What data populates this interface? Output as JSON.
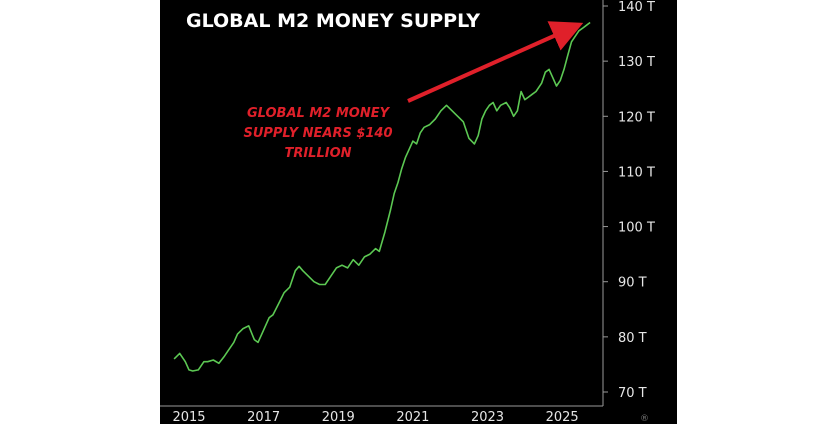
{
  "chart_data": {
    "type": "line",
    "title": "GLOBAL M2 MONEY SUPPLY",
    "annotation": [
      "GLOBAL M2 MONEY",
      "SUPPLY NEARS $140",
      "TRILLION"
    ],
    "yticks": [
      "140 T",
      "130 T",
      "120 T",
      "110 T",
      "100 T",
      "90 T",
      "80 T",
      "70 T"
    ],
    "xticks": [
      "2015",
      "2017",
      "2019",
      "2021",
      "2023",
      "2025"
    ],
    "ylim": [
      70,
      140
    ],
    "xlim": [
      2014.6,
      2026.0
    ],
    "grid": false,
    "watermark": "®",
    "colors": {
      "line": "#5cc853",
      "annotation": "#e0202a",
      "background": "#000000",
      "text": "#ffffff"
    },
    "series": [
      {
        "x": [
          2014.6,
          2014.75,
          2014.9,
          2015.0,
          2015.1,
          2015.25,
          2015.4,
          2015.5,
          2015.65,
          2015.8,
          2015.95,
          2016.05,
          2016.2,
          2016.3,
          2016.45,
          2016.6,
          2016.75,
          2016.85,
          2016.95,
          2017.05,
          2017.15,
          2017.25,
          2017.4,
          2017.55,
          2017.7,
          2017.85,
          2017.95,
          2018.05,
          2018.2,
          2018.35,
          2018.5,
          2018.65,
          2018.8,
          2018.95,
          2019.1,
          2019.25,
          2019.4,
          2019.55,
          2019.7,
          2019.85,
          2020.0,
          2020.1,
          2020.25,
          2020.4,
          2020.5,
          2020.6,
          2020.7,
          2020.8,
          2020.9,
          2021.0,
          2021.1,
          2021.2,
          2021.3,
          2021.45,
          2021.6,
          2021.75,
          2021.9,
          2022.05,
          2022.2,
          2022.35,
          2022.5,
          2022.65,
          2022.75,
          2022.85,
          2022.95,
          2023.05,
          2023.15,
          2023.25,
          2023.35,
          2023.5,
          2023.6,
          2023.7,
          2023.8,
          2023.9,
          2024.0,
          2024.1,
          2024.2,
          2024.3,
          2024.45,
          2024.55,
          2024.65,
          2024.75,
          2024.85,
          2024.95,
          2025.05,
          2025.15,
          2025.25,
          2025.35,
          2025.45,
          2025.55,
          2025.65,
          2025.75
        ],
        "y": [
          76.0,
          77.0,
          75.5,
          74.0,
          73.8,
          74.0,
          75.5,
          75.5,
          75.8,
          75.2,
          76.5,
          77.5,
          79.0,
          80.5,
          81.5,
          82.0,
          79.5,
          79.0,
          80.5,
          82.0,
          83.5,
          84.0,
          86.0,
          88.0,
          89.0,
          92.0,
          92.8,
          92.0,
          91.0,
          90.0,
          89.5,
          89.5,
          91.0,
          92.5,
          93.0,
          92.5,
          94.0,
          93.0,
          94.5,
          95.0,
          96.0,
          95.5,
          99.0,
          103.0,
          106.0,
          108.0,
          110.5,
          112.5,
          114.0,
          115.5,
          115.0,
          117.0,
          118.0,
          118.5,
          119.5,
          121.0,
          122.0,
          121.0,
          120.0,
          119.0,
          116.0,
          115.0,
          116.5,
          119.5,
          121.0,
          122.0,
          122.5,
          121.0,
          122.0,
          122.5,
          121.5,
          120.0,
          121.0,
          124.5,
          123.0,
          123.5,
          124.0,
          124.5,
          126.0,
          128.0,
          128.5,
          127.0,
          125.5,
          126.5,
          128.5,
          131.0,
          133.5,
          134.5,
          135.5,
          136.0,
          136.5,
          137.0
        ]
      }
    ]
  }
}
